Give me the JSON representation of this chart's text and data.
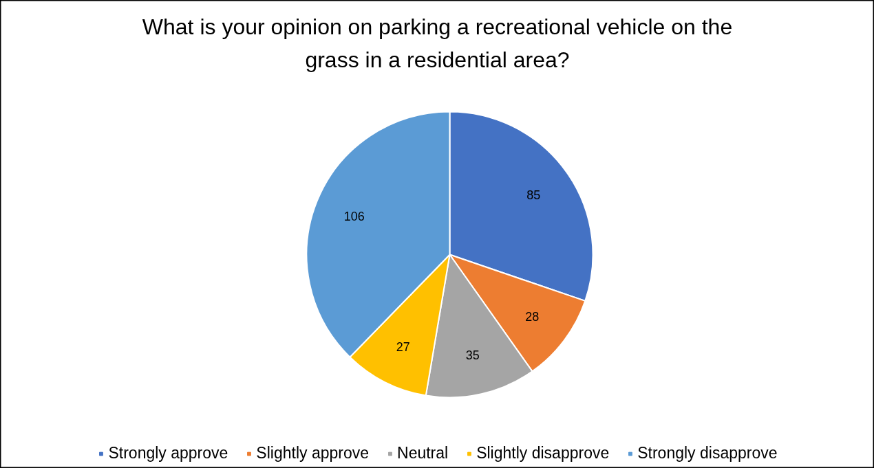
{
  "chart_data": {
    "type": "pie",
    "title": "What is your opinion on parking a recreational vehicle on the grass in a residential area?",
    "categories": [
      "Strongly approve",
      "Slightly approve",
      "Neutral",
      "Slightly disapprove",
      "Strongly disapprove"
    ],
    "values": [
      85,
      28,
      35,
      27,
      106
    ],
    "colors": [
      "#4472c4",
      "#ed7d31",
      "#a5a5a5",
      "#ffc000",
      "#5b9bd5"
    ],
    "data_labels": true,
    "legend": "bottom"
  }
}
